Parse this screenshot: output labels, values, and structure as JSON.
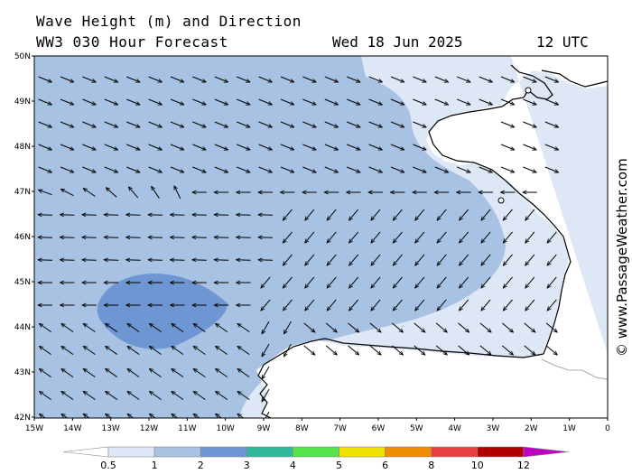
{
  "header": {
    "title_line1": "Wave Height (m) and Direction",
    "title_line2": "WW3 030 Hour Forecast",
    "date": "Wed 18 Jun 2025",
    "time": "12 UTC"
  },
  "credit": "© www.PassageWeather.com",
  "axes": {
    "lat_labels": [
      "50N",
      "49N",
      "48N",
      "47N",
      "46N",
      "45N",
      "44N",
      "43N",
      "42N"
    ],
    "lon_labels": [
      "15W",
      "14W",
      "13W",
      "12W",
      "11W",
      "10W",
      "9W",
      "8W",
      "7W",
      "6W",
      "5W",
      "4W",
      "3W",
      "2W",
      "1W",
      "0"
    ]
  },
  "legend": {
    "labels": [
      "0.5",
      "1",
      "2",
      "3",
      "4",
      "5",
      "6",
      "8",
      "10",
      "12"
    ],
    "colors": [
      "#dde7f5",
      "#a8c2e3",
      "#6e96d2",
      "#2fb89a",
      "#56e44d",
      "#f0e000",
      "#f08c00",
      "#e84040",
      "#b00000",
      "#c000c0"
    ]
  },
  "wave_field": {
    "lat_range": [
      42,
      50
    ],
    "lon_range": [
      -15,
      0
    ],
    "band_colors": {
      "0.5-1": "#dde7f5",
      "1-2": "#a8c2e3",
      "2-3": "#6e96d2"
    }
  }
}
